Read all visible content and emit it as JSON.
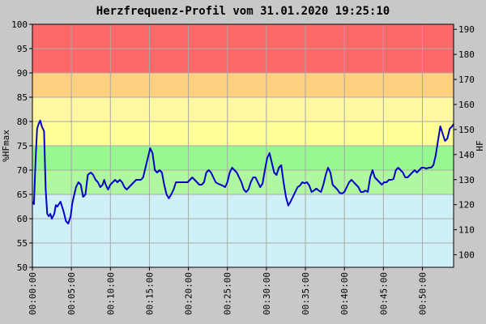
{
  "chart_data": {
    "type": "line",
    "title": "Herzfrequenz-Profil vom 31.01.2020 19:25:10",
    "ylabel": "%HFmax",
    "y2label": "HF",
    "ylim": [
      50,
      100
    ],
    "y2lim": [
      95,
      192
    ],
    "yticks": [
      50,
      55,
      60,
      65,
      70,
      75,
      80,
      85,
      90,
      95,
      100
    ],
    "y2ticks": [
      100,
      110,
      120,
      130,
      140,
      150,
      160,
      170,
      180,
      190
    ],
    "xlim_minutes": [
      0,
      54
    ],
    "xticks": [
      "00:00:00",
      "00:05:00",
      "00:10:00",
      "00:15:00",
      "00:20:00",
      "00:25:00",
      "00:30:00",
      "00:35:00",
      "00:40:00",
      "00:45:00",
      "00:50:00"
    ],
    "grid": true,
    "zones": [
      {
        "from": 50,
        "to": 65,
        "color": "#d0f0f8"
      },
      {
        "from": 65,
        "to": 70,
        "color": "#b0f8a0"
      },
      {
        "from": 70,
        "to": 75,
        "color": "#98f890"
      },
      {
        "from": 75,
        "to": 80,
        "color": "#ffff98"
      },
      {
        "from": 80,
        "to": 85,
        "color": "#fff8a0"
      },
      {
        "from": 85,
        "to": 90,
        "color": "#ffd080"
      },
      {
        "from": 90,
        "to": 100,
        "color": "#ff6868"
      }
    ],
    "line_color": "#0000cc",
    "series": [
      {
        "x": [
          0,
          0.2,
          0.4,
          0.6,
          0.8,
          1.0,
          1.2,
          1.5,
          1.7,
          1.9,
          2.1,
          2.3,
          2.5,
          2.8,
          3.0,
          3.2,
          3.4,
          3.6,
          3.8,
          4.0,
          4.3,
          4.6,
          4.9,
          5.1,
          5.3,
          5.6,
          5.9,
          6.2,
          6.5,
          6.8,
          7.1,
          7.3,
          7.5,
          7.8,
          8.1,
          8.4,
          8.7,
          9.0,
          9.2,
          9.4,
          9.7,
          10.0,
          10.3,
          10.6,
          10.9,
          11.2,
          11.5,
          11.8,
          12.1,
          12.4,
          12.7,
          13.0,
          13.3,
          13.6,
          13.9,
          14.2,
          14.5,
          14.8,
          15.1,
          15.4,
          15.7,
          16.0,
          16.3,
          16.6,
          16.9,
          17.2,
          17.5,
          17.8,
          18.1,
          18.4,
          18.7,
          19.0,
          19.3,
          19.6,
          19.9,
          20.2,
          20.5,
          20.8,
          21.1,
          21.4,
          21.7,
          22.0,
          22.3,
          22.6,
          22.9,
          23.2,
          23.5,
          23.8,
          24.1,
          24.4,
          24.7,
          25.0,
          25.3,
          25.6,
          25.9,
          26.2,
          26.5,
          26.8,
          27.1,
          27.4,
          27.7,
          28.0,
          28.3,
          28.6,
          28.9,
          29.2,
          29.5,
          29.8,
          30.1,
          30.4,
          30.7,
          31.0,
          31.3,
          31.6,
          31.9,
          32.2,
          32.5,
          32.8,
          33.1,
          33.4,
          33.7,
          34.0,
          34.3,
          34.6,
          34.9,
          35.2,
          35.5,
          35.8,
          36.1,
          36.4,
          36.7,
          37.0,
          37.3,
          37.6,
          37.9,
          38.2,
          38.5,
          38.8,
          39.1,
          39.4,
          39.7,
          40.0,
          40.3,
          40.6,
          40.9,
          41.2,
          41.5,
          41.8,
          42.1,
          42.4,
          42.7,
          43.0,
          43.3,
          43.6,
          43.9,
          44.2,
          44.5,
          44.8,
          45.1,
          45.4,
          45.7,
          46.0,
          46.3,
          46.6,
          46.9,
          47.2,
          47.5,
          47.8,
          48.1,
          48.4,
          48.7,
          49.0,
          49.3,
          49.6,
          49.9,
          50.2,
          50.5,
          50.8,
          51.1,
          51.4,
          51.7,
          52.0,
          52.3,
          52.6,
          52.9,
          53.2,
          53.5,
          53.8,
          54.0
        ],
        "y": [
          63.5,
          63,
          72,
          78.5,
          79.5,
          80.2,
          79,
          78,
          66,
          61,
          60.5,
          61,
          60,
          61,
          62.8,
          62.5,
          63,
          63.5,
          62.5,
          61.5,
          59.5,
          59,
          60.5,
          63,
          64.5,
          66.5,
          67.5,
          67,
          64.5,
          65,
          69,
          69.3,
          69.5,
          69,
          68,
          67.5,
          66.5,
          67,
          68,
          67,
          66,
          67,
          67.5,
          68,
          67.5,
          68,
          67.5,
          66.5,
          66,
          66.5,
          67,
          67.5,
          68,
          68,
          68,
          68.5,
          70.5,
          72.5,
          74.5,
          73.5,
          70,
          69.5,
          70,
          69.5,
          67,
          65,
          64.2,
          65,
          66,
          67.5,
          67.5,
          67.5,
          67.5,
          67.5,
          67.5,
          68,
          68.5,
          68,
          67.5,
          67,
          67,
          67.5,
          69.5,
          70,
          69.5,
          68.5,
          67.5,
          67.2,
          67,
          66.8,
          66.5,
          67.5,
          69.5,
          70.5,
          70,
          69.5,
          68.5,
          67.5,
          66,
          65.5,
          66,
          67.5,
          68.5,
          68.5,
          67.5,
          66.5,
          67.2,
          70,
          72.5,
          73.5,
          71.5,
          69.5,
          69,
          70.5,
          71,
          67.5,
          64.5,
          62.7,
          63.5,
          64.5,
          65.5,
          66.5,
          66.8,
          67.5,
          67.3,
          67.5,
          66.8,
          65.5,
          65.8,
          66.2,
          65.8,
          65.5,
          67,
          69,
          70.5,
          69.5,
          67,
          66.5,
          66,
          65.3,
          65.2,
          65.5,
          66.5,
          67.5,
          68,
          67.5,
          67,
          66.5,
          65.5,
          65.5,
          65.8,
          65.5,
          68.5,
          70,
          68.5,
          68,
          67.5,
          67,
          67.5,
          67.5,
          68,
          68,
          68.2,
          70,
          70.5,
          70,
          69.5,
          68.5,
          68.5,
          69,
          69.5,
          70,
          69.5,
          70,
          70.5,
          70.5,
          70.3,
          70.5,
          70.5,
          71,
          73,
          76,
          79,
          77.5,
          76,
          76.5,
          78.5,
          79,
          79.5
        ]
      }
    ]
  }
}
